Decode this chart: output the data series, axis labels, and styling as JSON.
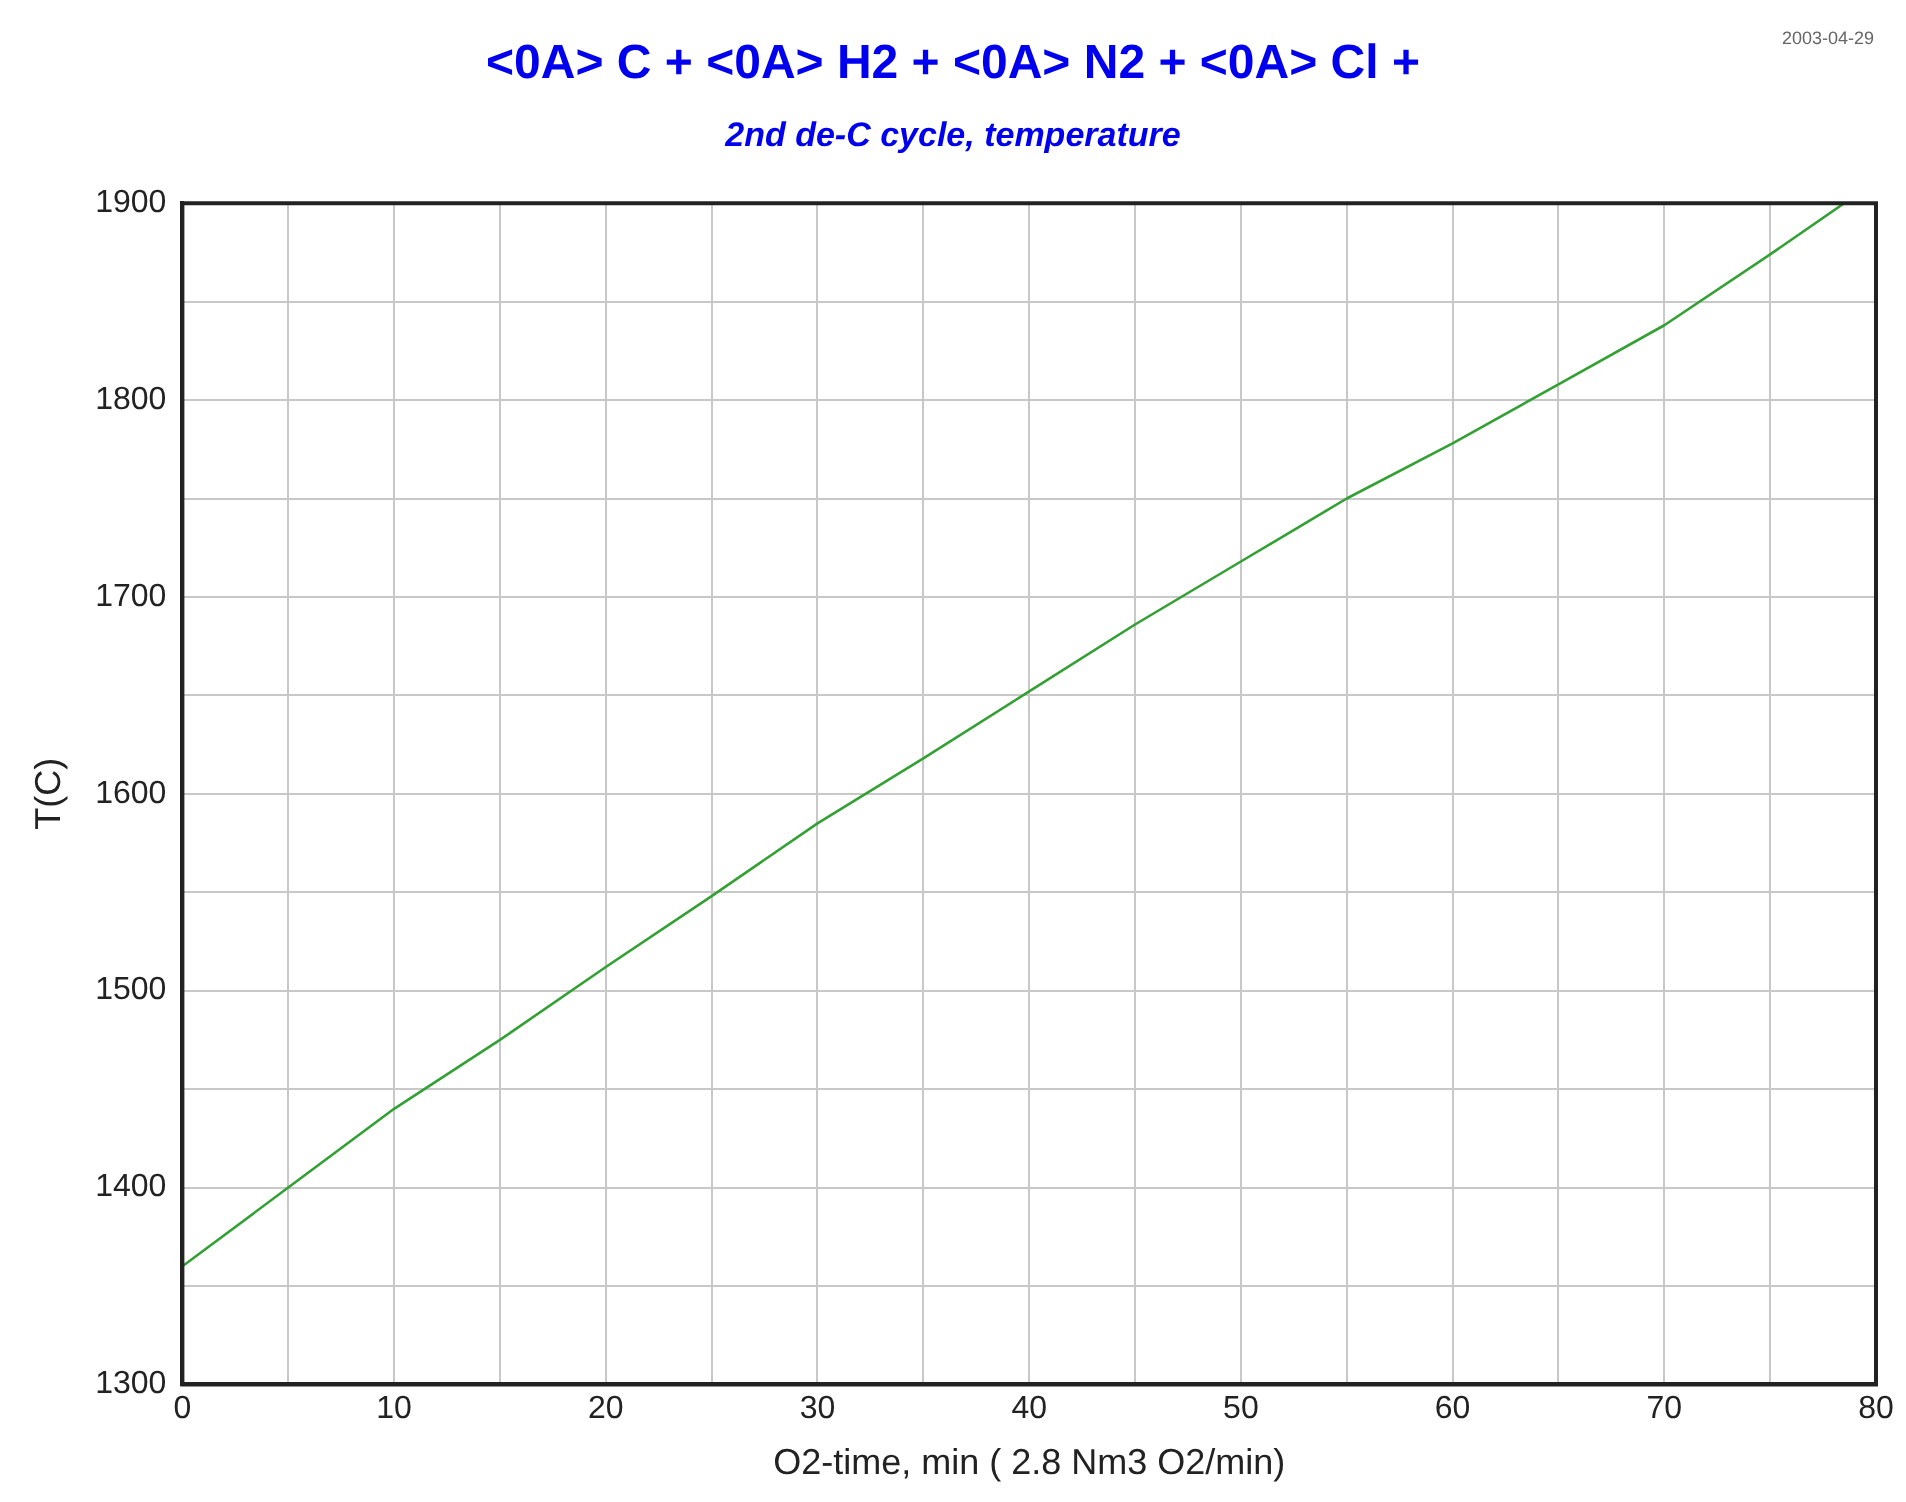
{
  "chart_data": {
    "type": "line",
    "title": "<0A> C +  <0A> H2 +  <0A> N2 +  <0A> Cl +",
    "subtitle": "2nd de-C cycle, temperature",
    "xlabel": "O2-time, min ( 2.8 Nm3 O2/min)",
    "ylabel": "T(C)",
    "annotations": [
      "2003-04-29"
    ],
    "x": [
      0,
      5,
      10,
      15,
      20,
      25,
      30,
      35,
      40,
      45,
      50,
      55,
      60,
      65,
      70,
      75,
      78.5
    ],
    "series": [
      {
        "color": "#33a033",
        "values": [
          1360,
          1400,
          1440,
          1475,
          1512,
          1548,
          1585,
          1618,
          1652,
          1686,
          1718,
          1750,
          1778,
          1808,
          1838,
          1874,
          1900
        ]
      }
    ],
    "xlim": [
      0,
      80
    ],
    "xticks": [
      0,
      {
        "value": 5,
        "label": null
      },
      10,
      {
        "value": 15,
        "label": null
      },
      20,
      {
        "value": 25,
        "label": null
      },
      30,
      {
        "value": 35,
        "label": null
      },
      40,
      {
        "value": 45,
        "label": null
      },
      50,
      {
        "value": 55,
        "label": null
      },
      60,
      {
        "value": 65,
        "label": null
      },
      70,
      {
        "value": 75,
        "label": null
      },
      80
    ],
    "ylim": [
      1300,
      1900
    ],
    "yticks": [
      1300,
      {
        "value": 1350,
        "label": null
      },
      1400,
      {
        "value": 1450,
        "label": null
      },
      1500,
      {
        "value": 1550,
        "label": null
      },
      1600,
      {
        "value": 1650,
        "label": null
      },
      1700,
      {
        "value": 1750,
        "label": null
      },
      1800,
      {
        "value": 1850,
        "label": null
      },
      1900
    ],
    "grid": true,
    "legend": false,
    "marker": "none",
    "line_style": "solid"
  }
}
